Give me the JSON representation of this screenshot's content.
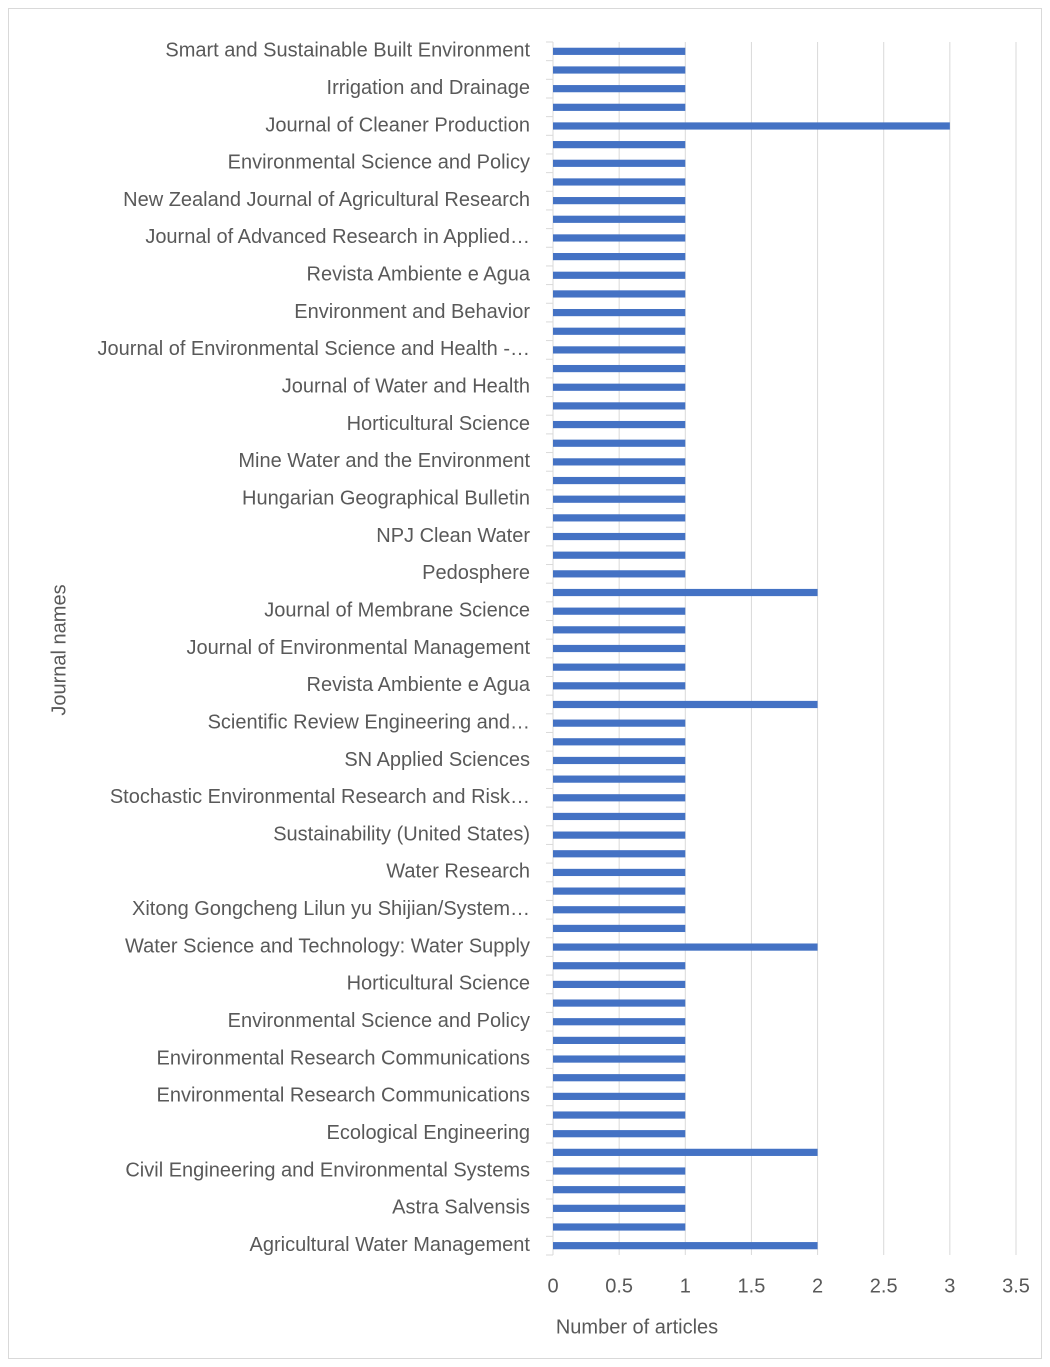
{
  "chart_data": {
    "type": "barh",
    "x_label": "Number of articles",
    "y_label": "Journal names",
    "categories": [
      "Smart and Sustainable Built Environment",
      null,
      "Irrigation and Drainage",
      null,
      "Journal of Cleaner Production",
      null,
      "Environmental Science and Policy",
      null,
      "New Zealand Journal of Agricultural Research",
      null,
      "Journal of Advanced Research in Applied…",
      null,
      "Revista Ambiente e Agua",
      null,
      "Environment and Behavior",
      null,
      "Journal of Environmental Science and Health -…",
      null,
      "Journal of Water and Health",
      null,
      "Horticultural Science",
      null,
      "Mine Water and the Environment",
      null,
      "Hungarian Geographical Bulletin",
      null,
      "NPJ Clean Water",
      null,
      "Pedosphere",
      null,
      "Journal of Membrane Science",
      null,
      "Journal of Environmental Management",
      null,
      "Revista Ambiente e Agua",
      null,
      "Scientific Review Engineering and…",
      null,
      "SN Applied Sciences",
      null,
      "Stochastic Environmental Research and Risk…",
      null,
      "Sustainability (United States)",
      null,
      "Water Research",
      null,
      "Xitong Gongcheng Lilun yu Shijian/System…",
      null,
      "Water Science and Technology: Water Supply",
      null,
      "Horticultural Science",
      null,
      "Environmental Science and Policy",
      null,
      "Environmental Research Communications",
      null,
      "Environmental Research Communications",
      null,
      "Ecological Engineering",
      null,
      "Civil Engineering and Environmental Systems",
      null,
      "Astra Salvensis",
      null,
      "Agricultural Water Management"
    ],
    "values": [
      1,
      1,
      1,
      1,
      3,
      1,
      1,
      1,
      1,
      1,
      1,
      1,
      1,
      1,
      1,
      1,
      1,
      1,
      1,
      1,
      1,
      1,
      1,
      1,
      1,
      1,
      1,
      1,
      1,
      2,
      1,
      1,
      1,
      1,
      1,
      2,
      1,
      1,
      1,
      1,
      1,
      1,
      1,
      1,
      1,
      1,
      1,
      1,
      2,
      1,
      1,
      1,
      1,
      1,
      1,
      1,
      1,
      1,
      1,
      2,
      1,
      1,
      1,
      1,
      2
    ],
    "color": "#4472c4",
    "xlim": [
      0,
      3.5
    ],
    "xticks": [
      0,
      0.5,
      1,
      1.5,
      2,
      2.5,
      3,
      3.5
    ],
    "grid": true
  }
}
